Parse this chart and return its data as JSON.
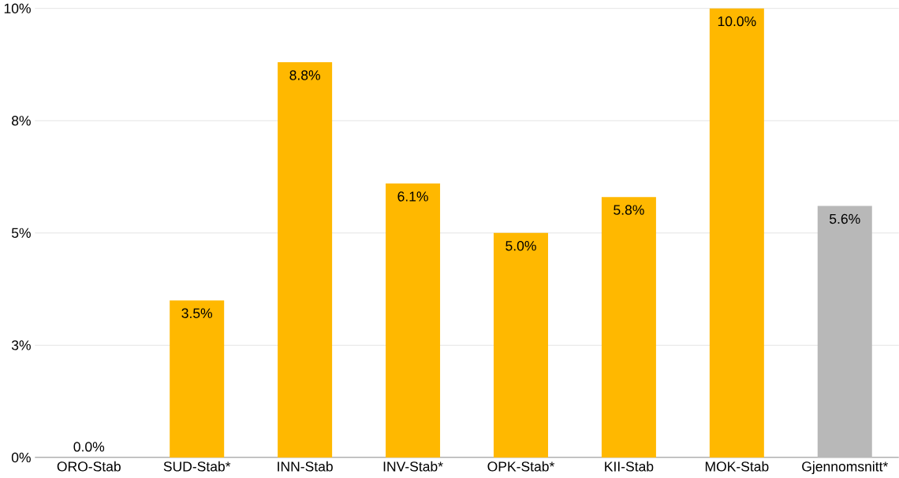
{
  "chart_data": {
    "type": "bar",
    "categories": [
      "ORO-Stab",
      "SUD-Stab*",
      "INN-Stab",
      "INV-Stab*",
      "OPK-Stab*",
      "KII-Stab",
      "MOK-Stab",
      "Gjennomsnitt*"
    ],
    "values": [
      0.0,
      3.5,
      8.8,
      6.1,
      5.0,
      5.8,
      10.0,
      5.6
    ],
    "colors": [
      "#ffb800",
      "#ffb800",
      "#ffb800",
      "#ffb800",
      "#ffb800",
      "#ffb800",
      "#ffb800",
      "#b8b8b8"
    ],
    "value_labels": [
      "0.0%",
      "3.5%",
      "8.8%",
      "6.1%",
      "5.0%",
      "5.8%",
      "10.0%",
      "5.6%"
    ],
    "ylim": [
      0,
      10
    ],
    "yticks": [
      {
        "value": 0,
        "label": "0%"
      },
      {
        "value": 2.5,
        "label": "3%"
      },
      {
        "value": 5,
        "label": "5%"
      },
      {
        "value": 7.5,
        "label": "8%"
      },
      {
        "value": 10,
        "label": "10%"
      }
    ],
    "grid": "y"
  }
}
